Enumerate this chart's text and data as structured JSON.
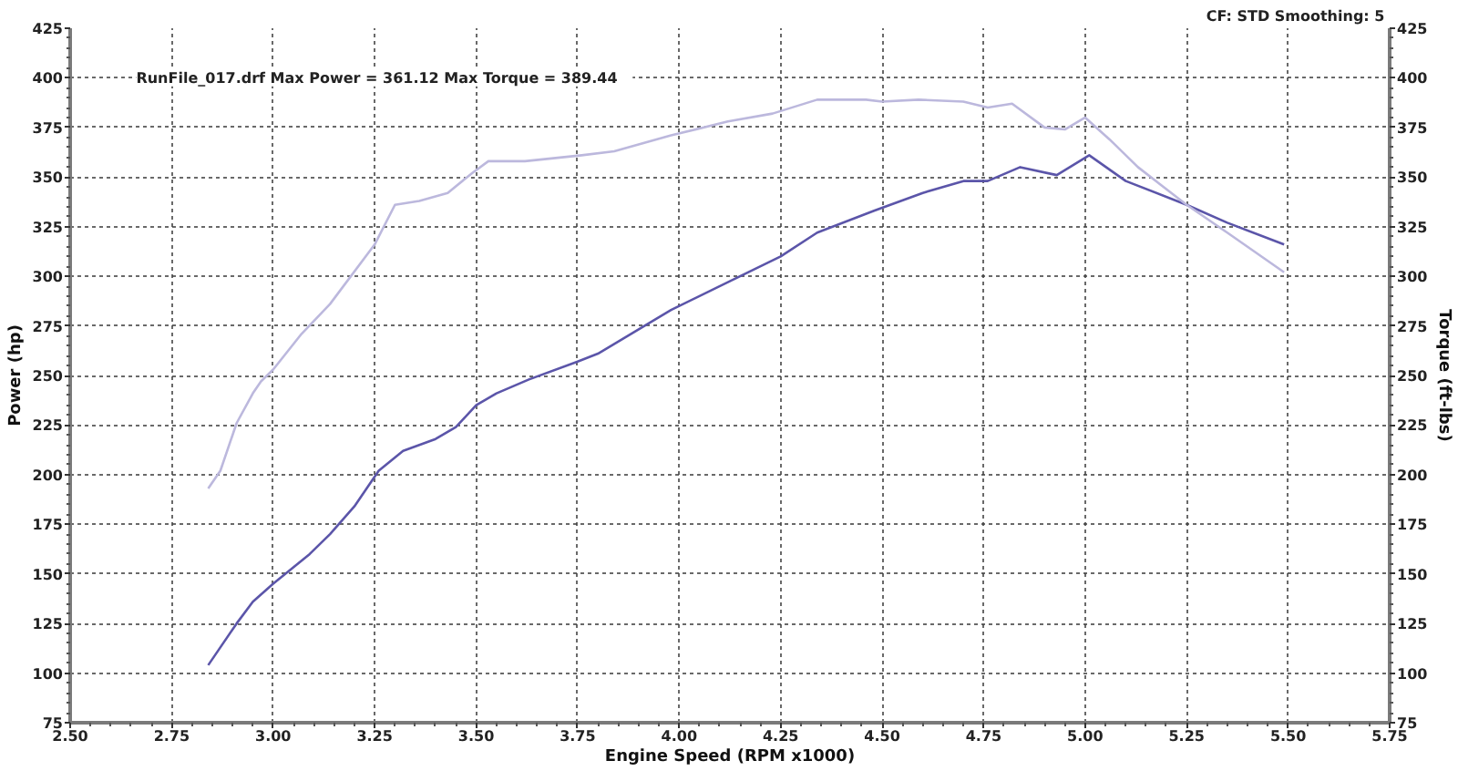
{
  "chart_data": {
    "type": "line",
    "xlabel": "Engine Speed (RPM x1000)",
    "ylabel": "Power (hp)",
    "y2label": "Torque (ft-lbs)",
    "annotations": [
      "CF: STD  Smoothing: 5",
      "RunFile_017.drf Max Power = 361.12    Max Torque = 389.44"
    ],
    "xlim": [
      2.5,
      5.75
    ],
    "xticks": [
      {
        "value": 2.5,
        "label": "2.50"
      },
      2.75,
      {
        "value": 3,
        "label": "3.00"
      },
      3.25,
      {
        "value": 3.5,
        "label": "3.50"
      },
      3.75,
      {
        "value": 4,
        "label": "4.00"
      },
      4.25,
      {
        "value": 4.5,
        "label": "4.50"
      },
      4.75,
      {
        "value": 5,
        "label": "5.00"
      },
      5.25,
      {
        "value": 5.5,
        "label": "5.50"
      },
      5.75
    ],
    "ylim": [
      75,
      425
    ],
    "yticks": [
      75,
      100,
      125,
      150,
      175,
      200,
      225,
      250,
      275,
      300,
      325,
      350,
      375,
      400,
      425
    ],
    "y2lim": [
      75,
      425
    ],
    "y2ticks": [
      75,
      100,
      125,
      150,
      175,
      200,
      225,
      250,
      275,
      300,
      325,
      350,
      375,
      400,
      425
    ],
    "grid": true,
    "marker": "none",
    "line_style": "solid",
    "series": [
      {
        "color": "#5b55a9",
        "x": [
          2.84,
          2.91,
          2.95,
          3.0,
          3.09,
          3.14,
          3.2,
          3.26,
          3.32,
          3.4,
          3.45,
          3.5,
          3.55,
          3.63,
          3.75,
          3.8,
          3.98,
          4.12,
          4.25,
          4.34,
          4.48,
          4.6,
          4.7,
          4.76,
          4.84,
          4.93,
          5.01,
          5.1,
          5.25,
          5.35,
          5.49
        ],
        "values": [
          104,
          125,
          136,
          145,
          160,
          170,
          184,
          202,
          212,
          218,
          224,
          235,
          241,
          248,
          257,
          261,
          283,
          297,
          310,
          322,
          333,
          342,
          348,
          348,
          355,
          351,
          361,
          348,
          336,
          327,
          316
        ]
      },
      {
        "color": "#bcb8dd",
        "x": [
          2.84,
          2.87,
          2.91,
          2.95,
          2.97,
          3.0,
          3.07,
          3.14,
          3.25,
          3.3,
          3.36,
          3.43,
          3.49,
          3.53,
          3.62,
          3.76,
          3.84,
          3.98,
          4.12,
          4.23,
          4.34,
          4.46,
          4.5,
          4.59,
          4.7,
          4.76,
          4.82,
          4.9,
          4.95,
          5.0,
          5.06,
          5.13,
          5.25,
          5.35,
          5.49
        ],
        "values": [
          193,
          202,
          226,
          241,
          247,
          253,
          271,
          286,
          316,
          336,
          338,
          342,
          352,
          358,
          358,
          361,
          363,
          371,
          378,
          382,
          389,
          389,
          388,
          389,
          388,
          385,
          387,
          375,
          374,
          380,
          369,
          355,
          336,
          322,
          302
        ]
      }
    ]
  }
}
